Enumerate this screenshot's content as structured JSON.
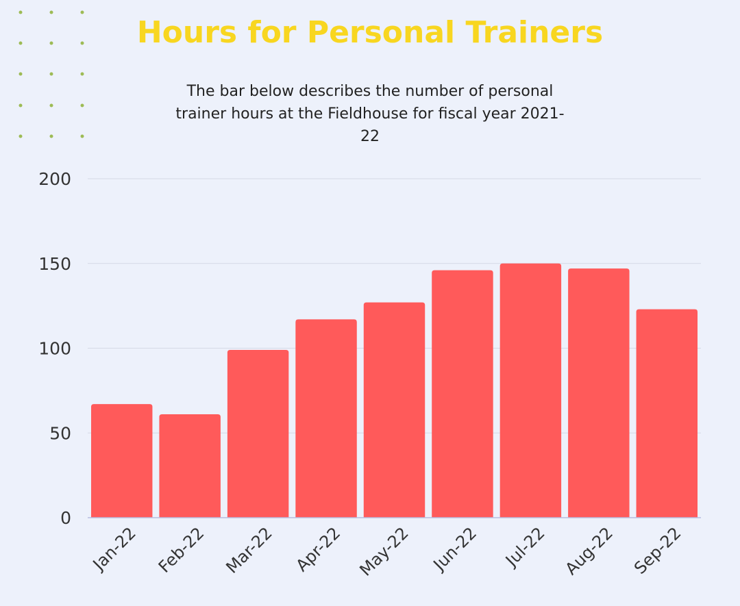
{
  "chart_data": {
    "type": "bar",
    "title": "Hours for Personal Trainers",
    "subtitle": "The bar below describes the number of personal trainer hours at the Fieldhouse for fiscal year 2021-22",
    "categories": [
      "Jan-22",
      "Feb-22",
      "Mar-22",
      "Apr-22",
      "May-22",
      "Jun-22",
      "Jul-22",
      "Aug-22",
      "Sep-22"
    ],
    "values": [
      67,
      61,
      99,
      117,
      127,
      146,
      150,
      147,
      123
    ],
    "color": "#ff5a5a",
    "ylim": [
      0,
      200
    ],
    "yticks": [
      0,
      50,
      100,
      150,
      200
    ],
    "grid": true
  }
}
